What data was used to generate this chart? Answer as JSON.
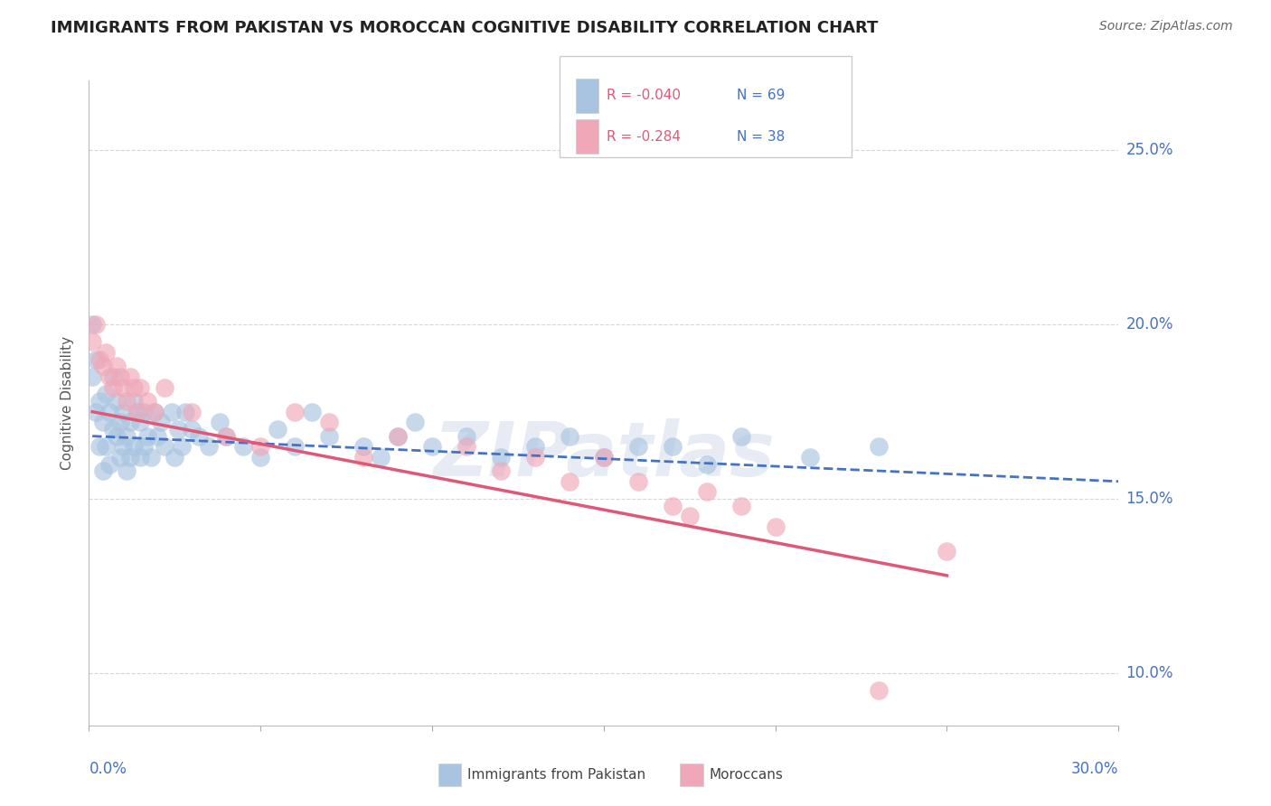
{
  "title": "IMMIGRANTS FROM PAKISTAN VS MOROCCAN COGNITIVE DISABILITY CORRELATION CHART",
  "source": "Source: ZipAtlas.com",
  "ylabel": "Cognitive Disability",
  "xlim": [
    0.0,
    0.3
  ],
  "ylim": [
    0.085,
    0.27
  ],
  "yticks": [
    0.1,
    0.15,
    0.2,
    0.25
  ],
  "ytick_labels": [
    "10.0%",
    "15.0%",
    "20.0%",
    "25.0%"
  ],
  "xtick_vals": [
    0.0,
    0.05,
    0.1,
    0.15,
    0.2,
    0.25,
    0.3
  ],
  "pakistan_R": "-0.040",
  "pakistan_N": "69",
  "moroccan_R": "-0.284",
  "moroccan_N": "38",
  "pakistan_color": "#a8c4e0",
  "moroccan_color": "#f0a8b8",
  "pakistan_line_color": "#4472c4",
  "moroccan_line_color": "#e05878",
  "legend_r_color": "#e05878",
  "legend_n_color": "#4472c4",
  "grid_color": "#cccccc",
  "title_color": "#222222",
  "source_color": "#666666",
  "axis_label_color": "#4472c4",
  "watermark_text": "ZIPatlas",
  "pakistan_x": [
    0.001,
    0.001,
    0.002,
    0.002,
    0.003,
    0.003,
    0.004,
    0.004,
    0.005,
    0.005,
    0.006,
    0.006,
    0.007,
    0.007,
    0.008,
    0.008,
    0.009,
    0.009,
    0.01,
    0.01,
    0.011,
    0.011,
    0.012,
    0.012,
    0.013,
    0.013,
    0.014,
    0.015,
    0.015,
    0.016,
    0.016,
    0.017,
    0.018,
    0.019,
    0.02,
    0.021,
    0.022,
    0.024,
    0.025,
    0.026,
    0.027,
    0.028,
    0.03,
    0.032,
    0.035,
    0.038,
    0.04,
    0.045,
    0.05,
    0.055,
    0.06,
    0.065,
    0.07,
    0.08,
    0.085,
    0.09,
    0.095,
    0.1,
    0.11,
    0.12,
    0.13,
    0.14,
    0.15,
    0.16,
    0.17,
    0.18,
    0.19,
    0.21,
    0.23
  ],
  "pakistan_y": [
    0.2,
    0.185,
    0.175,
    0.19,
    0.178,
    0.165,
    0.172,
    0.158,
    0.18,
    0.165,
    0.175,
    0.16,
    0.17,
    0.185,
    0.168,
    0.178,
    0.162,
    0.172,
    0.175,
    0.165,
    0.168,
    0.158,
    0.172,
    0.162,
    0.178,
    0.165,
    0.175,
    0.162,
    0.172,
    0.165,
    0.175,
    0.168,
    0.162,
    0.175,
    0.168,
    0.172,
    0.165,
    0.175,
    0.162,
    0.17,
    0.165,
    0.175,
    0.17,
    0.168,
    0.165,
    0.172,
    0.168,
    0.165,
    0.162,
    0.17,
    0.165,
    0.175,
    0.168,
    0.165,
    0.162,
    0.168,
    0.172,
    0.165,
    0.168,
    0.162,
    0.165,
    0.168,
    0.162,
    0.165,
    0.165,
    0.16,
    0.168,
    0.162,
    0.165
  ],
  "moroccan_x": [
    0.001,
    0.002,
    0.003,
    0.004,
    0.005,
    0.006,
    0.007,
    0.008,
    0.009,
    0.01,
    0.011,
    0.012,
    0.013,
    0.014,
    0.015,
    0.017,
    0.019,
    0.022,
    0.03,
    0.04,
    0.05,
    0.06,
    0.07,
    0.08,
    0.09,
    0.11,
    0.12,
    0.13,
    0.14,
    0.15,
    0.16,
    0.17,
    0.175,
    0.18,
    0.19,
    0.2,
    0.23,
    0.25
  ],
  "moroccan_y": [
    0.195,
    0.2,
    0.19,
    0.188,
    0.192,
    0.185,
    0.182,
    0.188,
    0.185,
    0.182,
    0.178,
    0.185,
    0.182,
    0.175,
    0.182,
    0.178,
    0.175,
    0.182,
    0.175,
    0.168,
    0.165,
    0.175,
    0.172,
    0.162,
    0.168,
    0.165,
    0.158,
    0.162,
    0.155,
    0.162,
    0.155,
    0.148,
    0.145,
    0.152,
    0.148,
    0.142,
    0.095,
    0.135
  ],
  "pak_trend_x": [
    0.001,
    0.3
  ],
  "pak_trend_y": [
    0.168,
    0.155
  ],
  "mor_trend_x": [
    0.001,
    0.25
  ],
  "mor_trend_y": [
    0.175,
    0.128
  ]
}
